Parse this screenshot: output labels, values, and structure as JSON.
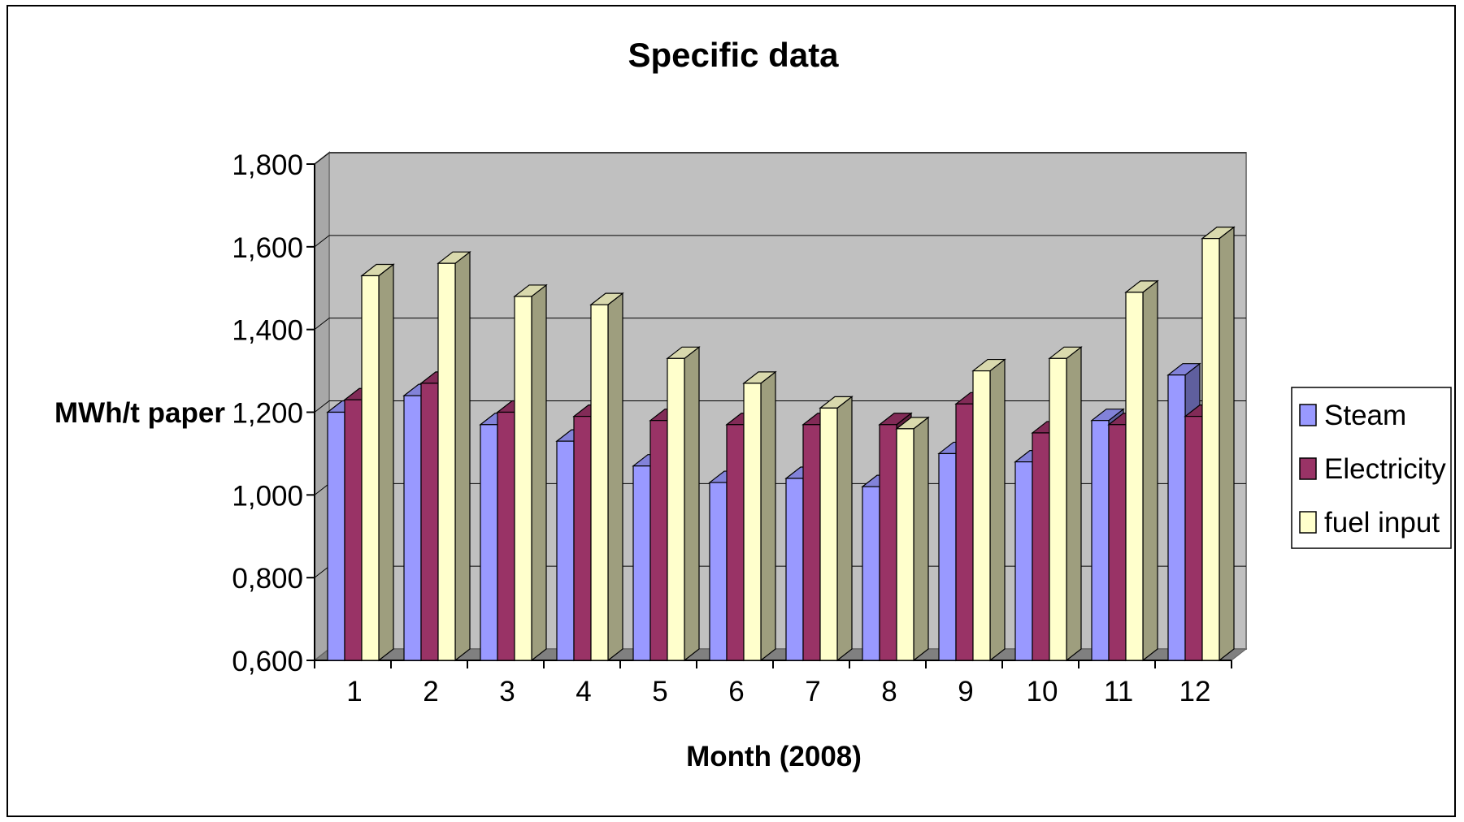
{
  "chart_data": {
    "type": "bar",
    "title": "Specific data",
    "xlabel": "Month (2008)",
    "ylabel": "MWh/t paper",
    "categories": [
      "1",
      "2",
      "3",
      "4",
      "5",
      "6",
      "7",
      "8",
      "9",
      "10",
      "11",
      "12"
    ],
    "y_ticks": [
      {
        "value": 0.6,
        "label": "0,600"
      },
      {
        "value": 0.8,
        "label": "0,800"
      },
      {
        "value": 1.0,
        "label": "1,000"
      },
      {
        "value": 1.2,
        "label": "1,200"
      },
      {
        "value": 1.4,
        "label": "1,400"
      },
      {
        "value": 1.6,
        "label": "1,600"
      },
      {
        "value": 1.8,
        "label": "1,800"
      }
    ],
    "ylim": [
      0.6,
      1.8
    ],
    "grid": true,
    "legend_position": "right",
    "three_d": true,
    "series": [
      {
        "name": "Steam",
        "color": "#9999ff",
        "values": [
          1.2,
          1.24,
          1.17,
          1.13,
          1.07,
          1.03,
          1.04,
          1.02,
          1.1,
          1.08,
          1.18,
          1.29
        ]
      },
      {
        "name": "Electricity",
        "color": "#993366",
        "values": [
          1.23,
          1.27,
          1.2,
          1.19,
          1.18,
          1.17,
          1.17,
          1.17,
          1.22,
          1.15,
          1.17,
          1.19
        ]
      },
      {
        "name": "fuel input",
        "color": "#ffffcc",
        "values": [
          1.53,
          1.56,
          1.48,
          1.46,
          1.33,
          1.27,
          1.21,
          1.16,
          1.3,
          1.33,
          1.49,
          1.62
        ]
      }
    ],
    "wall_color": "#c0c0c0",
    "floor_color": "#808080"
  }
}
